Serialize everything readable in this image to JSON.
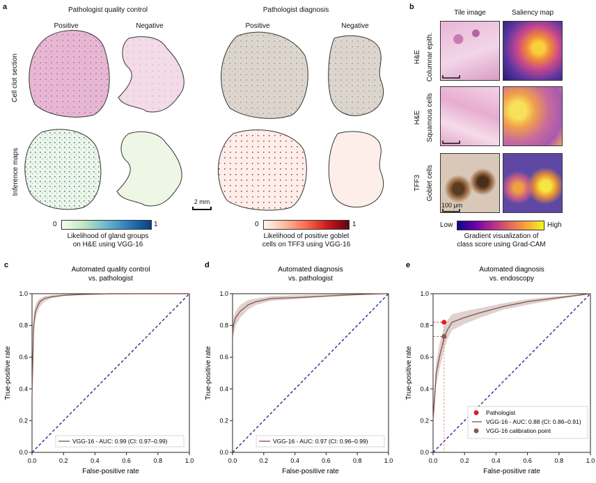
{
  "panel_a": {
    "letter": "a",
    "qc_title": "Pathologist quality control",
    "dx_title": "Pathologist diagnosis",
    "positive": "Positive",
    "negative": "Negative",
    "row1_label": "Cell clot section",
    "row2_label": "Inference maps",
    "scale_bar": "2 mm",
    "cbar_left": {
      "min": "0",
      "max": "1",
      "caption_line1": "Likelihood of gland groups",
      "caption_line2": "on H&E using VGG-16"
    },
    "cbar_right": {
      "min": "0",
      "max": "1",
      "caption_line1": "Likelihood of positive goblet",
      "caption_line2": "cells on TFF3 using VGG-16"
    }
  },
  "panel_b": {
    "letter": "b",
    "col1": "Tile image",
    "col2": "Saliency map",
    "rows": [
      {
        "stain": "H&E",
        "tissue": "Columnar epith."
      },
      {
        "stain": "H&E",
        "tissue": "Squamous cells"
      },
      {
        "stain": "TFF3",
        "tissue": "Goblet cells"
      }
    ],
    "scale_bar": "100 µm",
    "cbar_low": "Low",
    "cbar_high": "High",
    "caption_line1": "Gradient visualization of",
    "caption_line2": "class score using Grad-CAM"
  },
  "chart_data": [
    {
      "panel": "c",
      "type": "line",
      "title_line1": "Automated quality control",
      "title_line2": "vs. pathologist",
      "xlabel": "False-positive rate",
      "ylabel": "True-positive rate",
      "xlim": [
        0,
        1
      ],
      "ylim": [
        0,
        1
      ],
      "ticks": [
        "0.0",
        "0.2",
        "0.4",
        "0.6",
        "0.8",
        "1.0"
      ],
      "legend": "VGG-16 - AUC: 0.99 (CI: 0.97–0.99)",
      "color": "#8b5a52",
      "x": [
        0,
        0.01,
        0.02,
        0.03,
        0.05,
        0.08,
        0.12,
        0.2,
        0.3,
        0.5,
        1.0
      ],
      "y": [
        0.35,
        0.8,
        0.88,
        0.91,
        0.95,
        0.97,
        0.98,
        0.99,
        0.995,
        1.0,
        1.0
      ],
      "band_lo": [
        0.3,
        0.72,
        0.82,
        0.87,
        0.92,
        0.95,
        0.97,
        0.985,
        0.99,
        0.995,
        1.0
      ],
      "band_hi": [
        0.4,
        0.86,
        0.92,
        0.95,
        0.97,
        0.985,
        0.99,
        0.995,
        1.0,
        1.0,
        1.0
      ]
    },
    {
      "panel": "d",
      "type": "line",
      "title_line1": "Automated diagnosis",
      "title_line2": "vs. pathologist",
      "xlabel": "False-positive rate",
      "ylabel": "True-positive rate",
      "xlim": [
        0,
        1
      ],
      "ylim": [
        0,
        1
      ],
      "ticks": [
        "0.0",
        "0.2",
        "0.4",
        "0.6",
        "0.8",
        "1.0"
      ],
      "legend": "VGG-16 - AUC: 0.97 (CI: 0.96–0.99)",
      "color": "#8b5a52",
      "x": [
        0,
        0.005,
        0.02,
        0.05,
        0.1,
        0.15,
        0.25,
        0.4,
        0.6,
        0.8,
        1.0
      ],
      "y": [
        0.72,
        0.8,
        0.85,
        0.89,
        0.93,
        0.95,
        0.97,
        0.975,
        0.985,
        0.995,
        1.0
      ],
      "band_lo": [
        0.65,
        0.74,
        0.8,
        0.85,
        0.9,
        0.93,
        0.955,
        0.965,
        0.98,
        0.99,
        1.0
      ],
      "band_hi": [
        0.78,
        0.85,
        0.89,
        0.93,
        0.96,
        0.97,
        0.985,
        0.99,
        0.995,
        1.0,
        1.0
      ]
    },
    {
      "panel": "e",
      "type": "line",
      "title_line1": "Automated diagnosis",
      "title_line2": "vs. endoscopy",
      "xlabel": "False-positive rate",
      "ylabel": "True-positive rate",
      "xlim": [
        0,
        1
      ],
      "ylim": [
        0,
        1
      ],
      "ticks": [
        "0.0",
        "0.2",
        "0.4",
        "0.6",
        "0.8",
        "1.0"
      ],
      "legend_pathologist": "Pathologist",
      "legend": "VGG-16 - AUC: 0.88 (CI: 0.86–0.91)",
      "legend_calibration": "VGG-16 calibration point",
      "color": "#8b5a52",
      "x": [
        0,
        0.01,
        0.02,
        0.04,
        0.06,
        0.07,
        0.09,
        0.12,
        0.2,
        0.3,
        0.45,
        0.6,
        0.8,
        1.0
      ],
      "y": [
        0.2,
        0.35,
        0.5,
        0.6,
        0.68,
        0.72,
        0.77,
        0.82,
        0.85,
        0.88,
        0.92,
        0.95,
        0.975,
        1.0
      ],
      "band_lo": [
        0.15,
        0.28,
        0.42,
        0.52,
        0.6,
        0.65,
        0.71,
        0.77,
        0.81,
        0.85,
        0.9,
        0.93,
        0.965,
        1.0
      ],
      "band_hi": [
        0.26,
        0.42,
        0.57,
        0.68,
        0.75,
        0.79,
        0.83,
        0.87,
        0.89,
        0.91,
        0.94,
        0.965,
        0.985,
        1.0
      ],
      "pathologist_point": {
        "x": 0.07,
        "y": 0.82,
        "color": "#e02020"
      },
      "calibration_point": {
        "x": 0.07,
        "y": 0.73,
        "color": "#8b5a52"
      }
    }
  ]
}
